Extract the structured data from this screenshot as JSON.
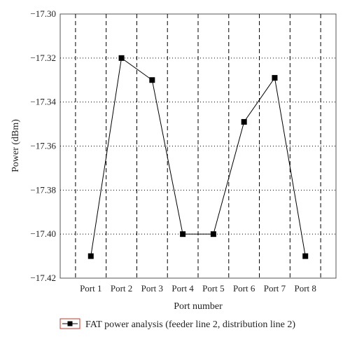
{
  "chart_data": {
    "type": "line",
    "title": "",
    "xlabel": "Port number",
    "ylabel": "Power (dBm)",
    "categories": [
      "Port 1",
      "Port 2",
      "Port 3",
      "Port 4",
      "Port 5",
      "Port 6",
      "Port 7",
      "Port 8"
    ],
    "series": [
      {
        "name": "FAT power analysis (feeder line 2, distribution line 2)",
        "values": [
          -17.41,
          -17.32,
          -17.33,
          -17.4,
          -17.4,
          -17.349,
          -17.329,
          -17.41
        ]
      }
    ],
    "ylim": [
      -17.42,
      -17.3
    ],
    "yticks": [
      -17.3,
      -17.32,
      -17.34,
      -17.36,
      -17.38,
      -17.4,
      -17.42
    ],
    "ytick_labels": [
      "−17.30",
      "−17.32",
      "−17.34",
      "−17.36",
      "−17.38",
      "−17.40",
      "−17.42"
    ],
    "grid": {
      "vertical": "dashed",
      "horizontal": "dotted"
    },
    "legend": "bottom",
    "colors": {
      "line": "#000000",
      "marker": "#000000",
      "legend_border": "#c0392b",
      "frame": "#555555"
    }
  }
}
